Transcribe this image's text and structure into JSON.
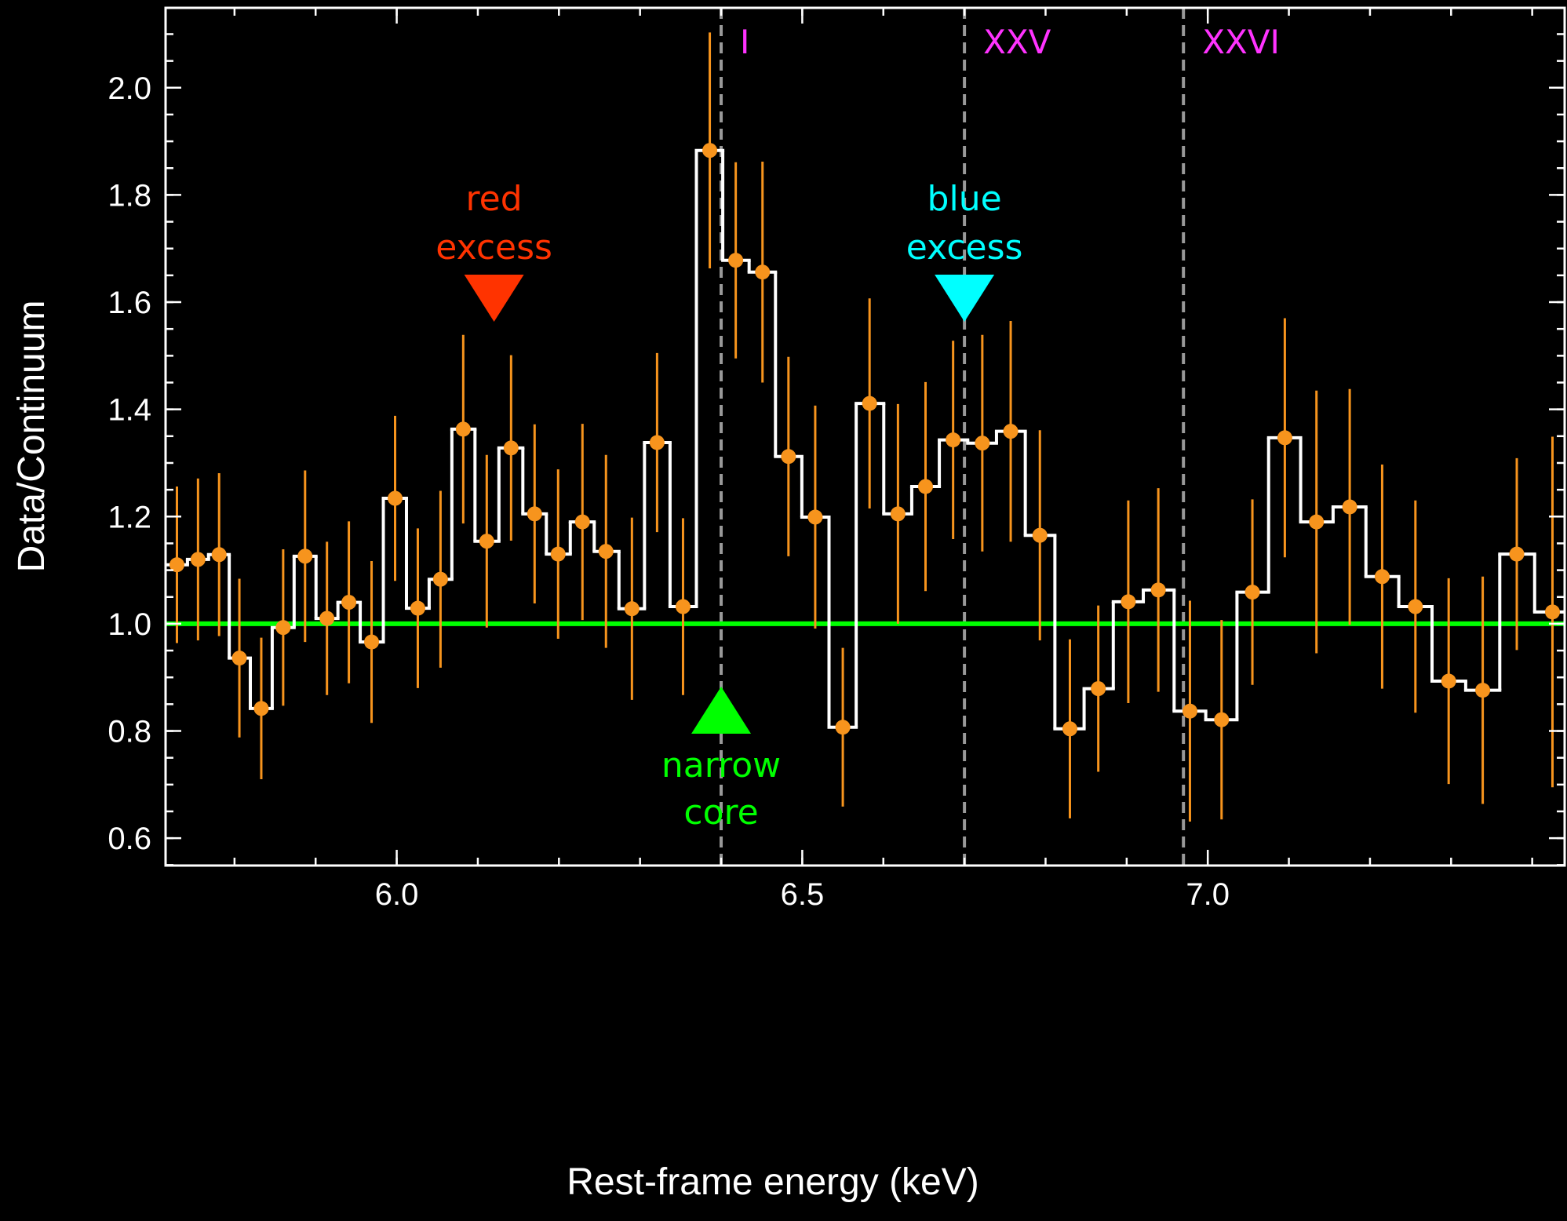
{
  "chart_data": {
    "type": "step-errorbar",
    "xlabel": "Rest-frame energy (keV)",
    "ylabel": "Data/Continuum",
    "xlim": [
      5.715,
      7.44
    ],
    "ylim": [
      0.549,
      2.149
    ],
    "xticks": [
      {
        "value": 6,
        "label": "6.0"
      },
      6.5,
      {
        "value": 7,
        "label": "7.0"
      }
    ],
    "yticks": [
      0.6,
      0.8,
      {
        "value": 1,
        "label": "1.0"
      },
      1.2,
      1.4,
      1.6,
      1.8,
      {
        "value": 2,
        "label": "2.0"
      }
    ],
    "xminor_step": 0.1,
    "yminor_step": 0.05,
    "x": [
      5.729,
      5.755,
      5.781,
      5.806,
      5.833,
      5.86,
      5.887,
      5.914,
      5.941,
      5.969,
      5.998,
      6.026,
      6.054,
      6.082,
      6.111,
      6.141,
      6.17,
      6.199,
      6.229,
      6.258,
      6.29,
      6.321,
      6.353,
      6.386,
      6.418,
      6.451,
      6.483,
      6.516,
      6.55,
      6.583,
      6.618,
      6.652,
      6.686,
      6.722,
      6.757,
      6.793,
      6.83,
      6.865,
      6.902,
      6.939,
      6.978,
      7.017,
      7.055,
      7.095,
      7.134,
      7.175,
      7.215,
      7.256,
      7.297,
      7.339,
      7.381,
      7.425
    ],
    "series": [
      {
        "color": "#f7941d",
        "step_color": "#ffffff",
        "values": [
          1.11,
          1.12,
          1.129,
          0.936,
          0.842,
          0.993,
          1.126,
          1.01,
          1.04,
          0.966,
          1.234,
          1.029,
          1.083,
          1.363,
          1.154,
          1.328,
          1.205,
          1.13,
          1.19,
          1.135,
          1.028,
          1.338,
          1.032,
          1.883,
          1.678,
          1.656,
          1.312,
          1.199,
          0.807,
          1.411,
          1.205,
          1.256,
          1.343,
          1.337,
          1.359,
          1.165,
          0.804,
          0.879,
          1.041,
          1.063,
          0.837,
          0.821,
          1.059,
          1.347,
          1.19,
          1.218,
          1.088,
          1.032,
          0.893,
          0.876,
          1.13,
          1.022
        ],
        "errors": [
          0.146,
          0.151,
          0.152,
          0.148,
          0.132,
          0.146,
          0.16,
          0.143,
          0.151,
          0.151,
          0.154,
          0.149,
          0.165,
          0.176,
          0.161,
          0.173,
          0.167,
          0.158,
          0.183,
          0.18,
          0.17,
          0.167,
          0.165,
          0.22,
          0.183,
          0.206,
          0.186,
          0.208,
          0.148,
          0.196,
          0.205,
          0.195,
          0.185,
          0.202,
          0.206,
          0.196,
          0.167,
          0.155,
          0.189,
          0.19,
          0.206,
          0.186,
          0.173,
          0.223,
          0.245,
          0.22,
          0.209,
          0.198,
          0.192,
          0.212,
          0.179,
          0.327
        ]
      }
    ],
    "hline": {
      "value": 1,
      "color": "#00ff00"
    },
    "vlines": [
      {
        "x": 6.4,
        "label": "I",
        "color": "#999999",
        "label_color": "#ff33ff"
      },
      {
        "x": 6.7,
        "label": "XXV",
        "color": "#999999",
        "label_color": "#ff33ff"
      },
      {
        "x": 6.97,
        "label": "XXVI",
        "color": "#999999",
        "label_color": "#ff33ff"
      }
    ],
    "annotations": [
      {
        "lines": [
          "red",
          "excess"
        ],
        "x": 6.12,
        "color": "#ff3300",
        "marker": "down"
      },
      {
        "lines": [
          "blue",
          "excess"
        ],
        "x": 6.7,
        "color": "#00ffff",
        "marker": "down"
      },
      {
        "lines": [
          "narrow",
          "core"
        ],
        "x": 6.4,
        "color": "#00ff00",
        "marker": "up"
      }
    ]
  }
}
